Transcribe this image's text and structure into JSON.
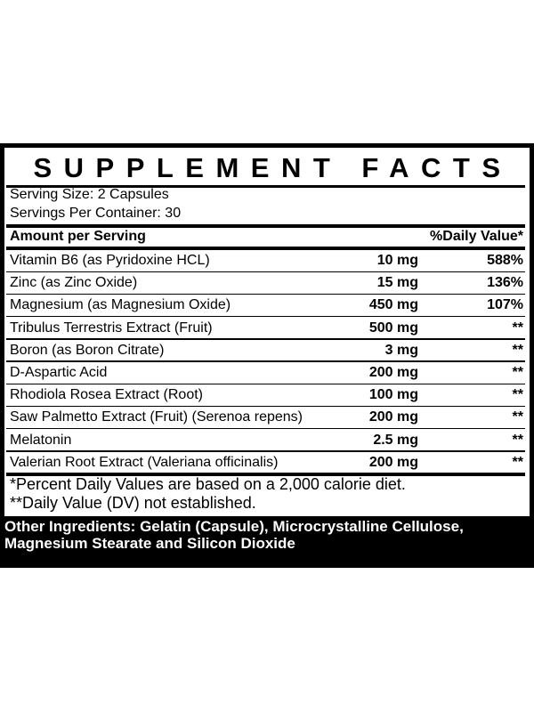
{
  "title": "SUPPLEMENT FACTS",
  "serving_size": "Serving Size: 2 Capsules",
  "servings_per_container": "Servings Per Container: 30",
  "header": {
    "amount": "Amount per Serving",
    "dv": "%Daily Value*"
  },
  "rows": [
    {
      "name": "Vitamin B6 (as Pyridoxine HCL)",
      "amount": "10 mg",
      "dv": "588%"
    },
    {
      "name": "Zinc (as Zinc Oxide)",
      "amount": "15 mg",
      "dv": "136%"
    },
    {
      "name": "Magnesium (as Magnesium Oxide)",
      "amount": "450 mg",
      "dv": "107%"
    },
    {
      "name": "Tribulus Terrestris Extract (Fruit)",
      "amount": "500 mg",
      "dv": "**"
    },
    {
      "name": "Boron (as Boron Citrate)",
      "amount": "3 mg",
      "dv": "**"
    },
    {
      "name": "D-Aspartic Acid",
      "amount": "200 mg",
      "dv": "**"
    },
    {
      "name": "Rhodiola Rosea Extract (Root)",
      "amount": "100 mg",
      "dv": "**"
    },
    {
      "name": "Saw Palmetto Extract (Fruit) (Serenoa repens)",
      "amount": "200 mg",
      "dv": "**"
    },
    {
      "name": "Melatonin",
      "amount": "2.5 mg",
      "dv": "**"
    },
    {
      "name": "Valerian Root Extract (Valeriana officinalis)",
      "amount": "200 mg",
      "dv": "**"
    }
  ],
  "footnotes": [
    "*Percent Daily Values are based on a 2,000 calorie diet.",
    "**Daily Value (DV) not established."
  ],
  "other_ingredients": [
    "Other Ingredients: Gelatin (Capsule), Microcrystalline Cellulose,",
    "Magnesium Stearate and Silicon Dioxide"
  ]
}
